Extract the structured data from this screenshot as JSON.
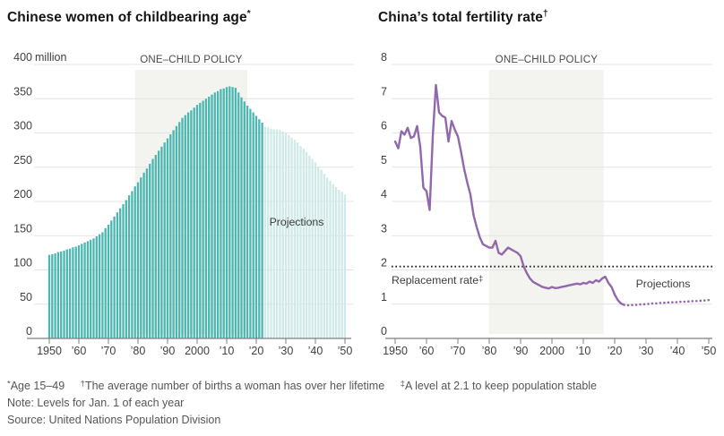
{
  "page": {
    "background": "#ffffff"
  },
  "chart_data": [
    {
      "type": "bar",
      "title": "Chinese women of childbearing age",
      "title_sup": "*",
      "x_start_year": 1950,
      "x_tick_years": [
        1950,
        1960,
        1970,
        1980,
        1990,
        2000,
        2010,
        2020,
        2030,
        2040,
        2050
      ],
      "x_tick_labels": [
        "1950",
        "’60",
        "’70",
        "’80",
        "’90",
        "2000",
        "’10",
        "’20",
        "’30",
        "’40",
        "’50"
      ],
      "ylim": [
        0,
        400
      ],
      "ytick_step": 50,
      "y_unit_suffix": " million",
      "grid": true,
      "policy_band": {
        "label": "ONE–CHILD POLICY",
        "from_year": 1979,
        "to_year": 2017
      },
      "projections": {
        "label": "Projections",
        "from_year": 2023
      },
      "values": [
        122,
        123,
        124,
        126,
        127,
        128,
        130,
        131,
        133,
        134,
        136,
        138,
        140,
        142,
        144,
        146,
        149,
        152,
        155,
        161,
        166,
        172,
        178,
        184,
        190,
        196,
        202,
        209,
        215,
        222,
        228,
        235,
        242,
        248,
        255,
        262,
        268,
        274,
        280,
        286,
        292,
        298,
        304,
        310,
        316,
        322,
        326,
        330,
        333,
        337,
        341,
        344,
        347,
        350,
        353,
        356,
        359,
        361,
        364,
        365,
        367,
        368,
        367,
        366,
        359,
        352,
        346,
        340,
        335,
        330,
        325,
        320,
        315,
        309,
        308,
        306,
        305,
        305,
        304,
        302,
        300,
        297,
        293,
        290,
        286,
        281,
        277,
        272,
        267,
        262,
        257,
        251,
        246,
        240,
        235,
        230,
        225,
        221,
        217,
        214,
        210
      ],
      "colors": {
        "bar": "#4cb7b0",
        "bar_projection": "#cfeae8",
        "band": "#f3f3f0"
      }
    },
    {
      "type": "line",
      "title": "China’s total fertility rate",
      "title_sup": "†",
      "x_start_year": 1950,
      "x_tick_years": [
        1950,
        1960,
        1970,
        1980,
        1990,
        2000,
        2010,
        2020,
        2030,
        2040,
        2050
      ],
      "x_tick_labels": [
        "1950",
        "’60",
        "’70",
        "’80",
        "’90",
        "2000",
        "’10",
        "’20",
        "’30",
        "’40",
        "’50"
      ],
      "ylim": [
        0,
        8
      ],
      "ytick_step": 1,
      "grid": true,
      "policy_band": {
        "label": "ONE–CHILD POLICY",
        "from_year": 1980,
        "to_year": 2016.5
      },
      "projections": {
        "label": "Projections",
        "from_year": 2023
      },
      "replacement": {
        "label": "Replacement rate",
        "label_sup": "‡",
        "value": 2.1
      },
      "values": [
        5.75,
        5.55,
        6.05,
        5.95,
        6.15,
        5.85,
        5.9,
        6.2,
        5.6,
        4.4,
        4.3,
        3.75,
        5.9,
        7.4,
        6.6,
        6.5,
        6.45,
        5.75,
        6.35,
        6.1,
        5.9,
        5.45,
        4.95,
        4.55,
        4.2,
        3.6,
        3.25,
        2.95,
        2.75,
        2.7,
        2.65,
        2.65,
        2.85,
        2.5,
        2.45,
        2.55,
        2.65,
        2.6,
        2.55,
        2.5,
        2.4,
        2.1,
        1.9,
        1.75,
        1.65,
        1.6,
        1.55,
        1.5,
        1.48,
        1.46,
        1.5,
        1.47,
        1.48,
        1.5,
        1.52,
        1.54,
        1.56,
        1.58,
        1.6,
        1.58,
        1.62,
        1.6,
        1.66,
        1.62,
        1.7,
        1.66,
        1.75,
        1.8,
        1.62,
        1.5,
        1.28,
        1.12,
        1.02,
        0.98,
        0.97,
        0.97,
        0.98,
        0.98,
        0.99,
        1.0,
        1.0,
        1.01,
        1.02,
        1.02,
        1.03,
        1.04,
        1.04,
        1.05,
        1.05,
        1.06,
        1.06,
        1.07,
        1.07,
        1.08,
        1.08,
        1.09,
        1.09,
        1.1,
        1.1,
        1.11,
        1.12
      ],
      "colors": {
        "line": "#9168ac",
        "band": "#f3f3f0",
        "replacement": "#1a1a1a"
      }
    }
  ],
  "footer": {
    "footnotes": [
      {
        "sym": "*",
        "text": "Age 15–49"
      },
      {
        "sym": "†",
        "text": "The average number of births a woman has over her lifetime"
      },
      {
        "sym": "‡",
        "text": "A level at 2.1 to keep population stable"
      }
    ],
    "note": "Note: Levels for Jan. 1 of each year",
    "source": "Source: United Nations Population Division"
  }
}
